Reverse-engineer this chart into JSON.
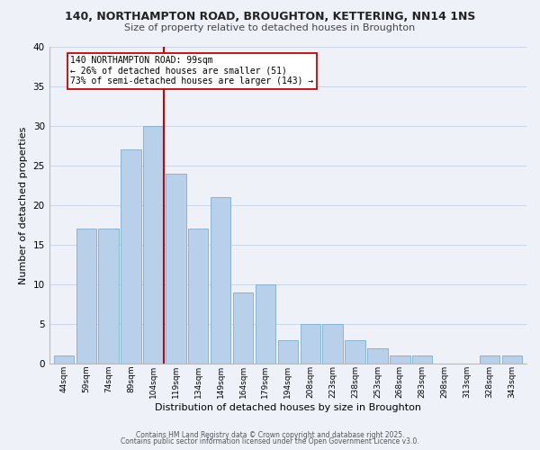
{
  "title_line1": "140, NORTHAMPTON ROAD, BROUGHTON, KETTERING, NN14 1NS",
  "title_line2": "Size of property relative to detached houses in Broughton",
  "xlabel": "Distribution of detached houses by size in Broughton",
  "ylabel": "Number of detached properties",
  "footer_line1": "Contains HM Land Registry data © Crown copyright and database right 2025.",
  "footer_line2": "Contains public sector information licensed under the Open Government Licence v3.0.",
  "bin_labels": [
    "44sqm",
    "59sqm",
    "74sqm",
    "89sqm",
    "104sqm",
    "119sqm",
    "134sqm",
    "149sqm",
    "164sqm",
    "179sqm",
    "194sqm",
    "208sqm",
    "223sqm",
    "238sqm",
    "253sqm",
    "268sqm",
    "283sqm",
    "298sqm",
    "313sqm",
    "328sqm",
    "343sqm"
  ],
  "bar_values": [
    1,
    17,
    17,
    27,
    30,
    24,
    17,
    21,
    9,
    10,
    3,
    5,
    5,
    3,
    2,
    1,
    1,
    0,
    0,
    1,
    1
  ],
  "bar_color": "#b8d0ea",
  "bar_edge_color": "#7aadd4",
  "grid_color": "#ccd8e8",
  "background_color": "#eef2f8",
  "ref_line_color": "#cc0000",
  "ref_bin_index": 4,
  "annotation_text": "140 NORTHAMPTON ROAD: 99sqm\n← 26% of detached houses are smaller (51)\n73% of semi-detached houses are larger (143) →",
  "annotation_box_facecolor": "#ffffff",
  "annotation_box_edgecolor": "#cc0000",
  "ylim": [
    0,
    40
  ],
  "yticks": [
    0,
    5,
    10,
    15,
    20,
    25,
    30,
    35,
    40
  ],
  "title1_fontsize": 9.0,
  "title2_fontsize": 8.0,
  "xlabel_fontsize": 8.0,
  "ylabel_fontsize": 8.0,
  "xtick_fontsize": 6.5,
  "ytick_fontsize": 7.5,
  "annot_fontsize": 7.0,
  "footer_fontsize": 5.5
}
